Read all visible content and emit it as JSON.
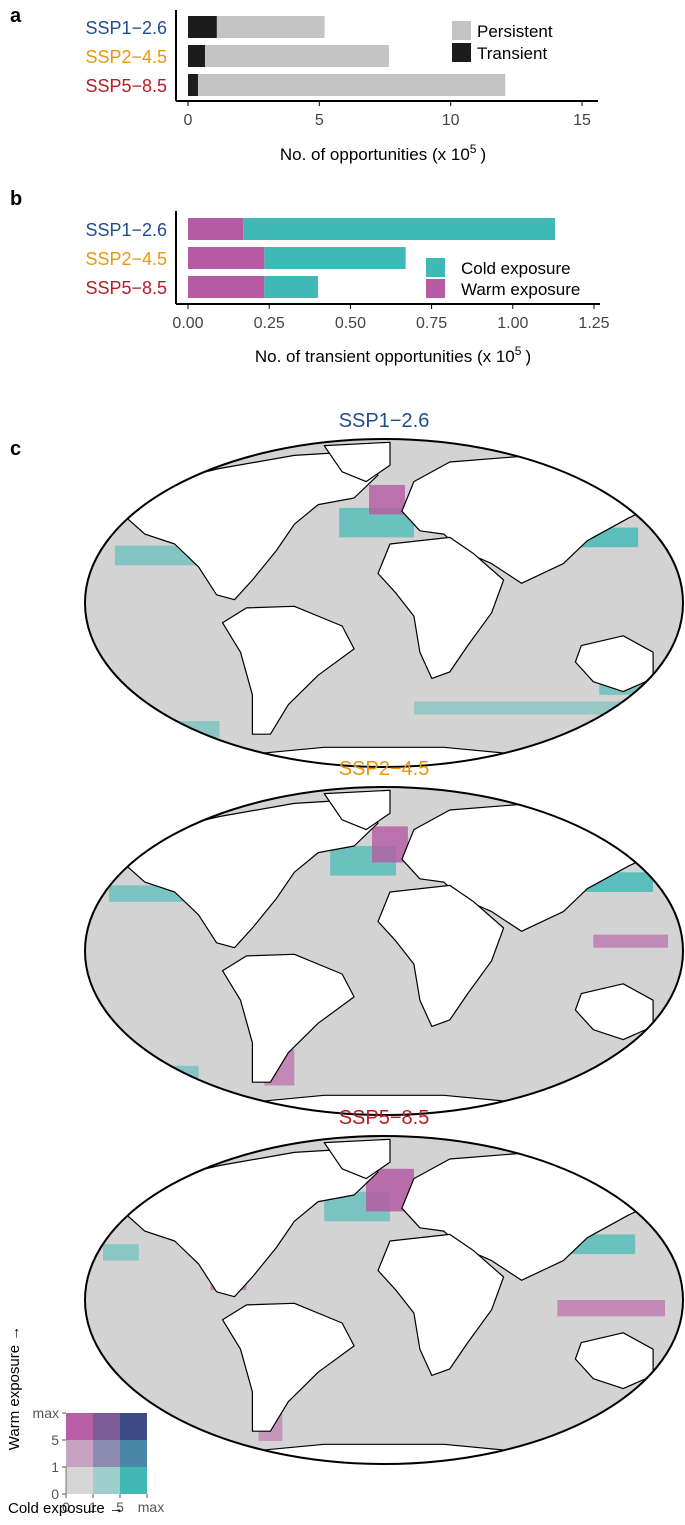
{
  "colors": {
    "ssp126": "#1f4e8c",
    "ssp245": "#e8960c",
    "ssp585": "#b51d24",
    "persistent": "#c4c4c4",
    "transient": "#1c1c1c",
    "cold": "#3fb9b5",
    "warm": "#b55aa3",
    "ocean": "#d3d3d3",
    "land": "#ffffff"
  },
  "panels": {
    "a": "a",
    "b": "b",
    "c": "c"
  },
  "chart_data": [
    {
      "type": "bar",
      "orientation": "horizontal",
      "stacked": true,
      "categories": [
        "SSP1−2.6",
        "SSP2−4.5",
        "SSP5−8.5"
      ],
      "series": [
        {
          "name": "Transient",
          "values": [
            1.1,
            0.65,
            0.38
          ]
        },
        {
          "name": "Persistent",
          "values": [
            4.1,
            7.0,
            11.7
          ]
        }
      ],
      "xlabel": "No. of opportunities (x 10",
      "xlabel_sup": "5",
      "xlabel_end": ")",
      "xlim": [
        0,
        15
      ],
      "xticks": [
        "0",
        "5",
        "10",
        "15"
      ],
      "legend": [
        "Persistent",
        "Transient"
      ],
      "legend_position": "top-right",
      "grid": false
    },
    {
      "type": "bar",
      "orientation": "horizontal",
      "stacked": true,
      "categories": [
        "SSP1−2.6",
        "SSP2−4.5",
        "SSP5−8.5"
      ],
      "series": [
        {
          "name": "Warm exposure",
          "values": [
            0.17,
            0.235,
            0.235
          ]
        },
        {
          "name": "Cold exposure",
          "values": [
            0.96,
            0.435,
            0.165
          ]
        }
      ],
      "xlabel": "No. of transient opportunities (x 10",
      "xlabel_sup": "5",
      "xlabel_end": ")",
      "xlim": [
        0,
        1.25
      ],
      "xticks": [
        "0.00",
        "0.25",
        "0.50",
        "0.75",
        "1.00",
        "1.25"
      ],
      "legend": [
        "Cold exposure",
        "Warm exposure"
      ],
      "legend_position": "bottom-right",
      "grid": false
    },
    {
      "type": "heatmap",
      "description_kind": "bivariate world maps",
      "maps": [
        {
          "title": "SSP1−2.6"
        },
        {
          "title": "SSP2−4.5"
        },
        {
          "title": "SSP5−8.5"
        }
      ],
      "legend": {
        "xlabel": "Cold exposure →",
        "ylabel": "Warm exposure →",
        "xticks": [
          "0",
          "1",
          "5",
          "max"
        ],
        "yticks": [
          "0",
          "1",
          "5",
          "max"
        ],
        "grid_colors": [
          [
            "#d6d6d6",
            "#9fcfcc",
            "#42b8b4"
          ],
          [
            "#c7a2c2",
            "#8c8cb0",
            "#4a86a6"
          ],
          [
            "#b85ea7",
            "#7f5a98",
            "#3d4c86"
          ]
        ]
      }
    }
  ]
}
